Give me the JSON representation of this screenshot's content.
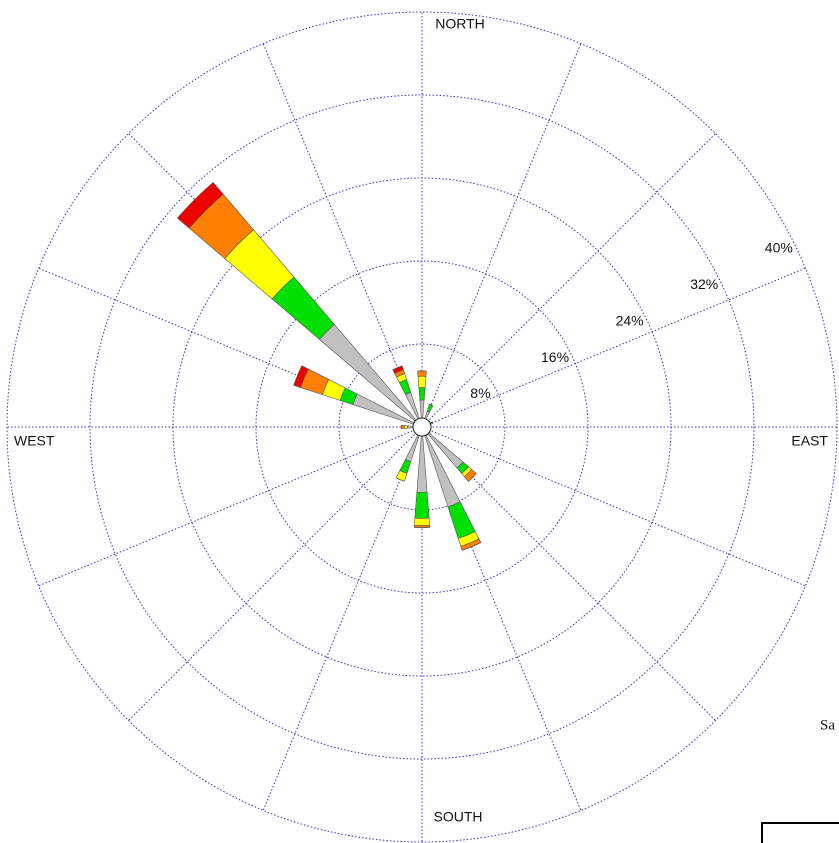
{
  "chart_data": {
    "type": "windrose",
    "categories": [
      "NORTH",
      null,
      null,
      null,
      "EAST",
      null,
      null,
      null,
      "SOUTH",
      null,
      null,
      null,
      "WEST",
      null,
      null,
      null
    ],
    "series": [
      {
        "color": "#c0c0c0",
        "values": [
          2.6,
          1.6,
          0,
          0.6,
          0,
          0,
          5.2,
          8.1,
          6.3,
          3.5,
          0,
          0,
          1.4,
          7,
          13,
          3.5
        ]
      },
      {
        "color": "#00e000",
        "values": [
          1.2,
          0.7,
          0,
          0.5,
          0,
          0,
          0.7,
          3.2,
          2.5,
          1.2,
          0,
          0,
          0,
          1.3,
          6,
          1.3
        ]
      },
      {
        "color": "#ffff00",
        "values": [
          1.1,
          0,
          0,
          0,
          0,
          0,
          0.4,
          0.8,
          0.7,
          0.8,
          0,
          0,
          0.3,
          1.8,
          6,
          0.6
        ]
      },
      {
        "color": "#ff8000",
        "values": [
          0.5,
          0,
          0,
          0,
          0,
          0,
          0.6,
          0.4,
          0.2,
          0,
          0,
          0,
          0.3,
          2.2,
          4.5,
          0.4
        ]
      },
      {
        "color": "#ee0000",
        "values": [
          0,
          0,
          0,
          0,
          0,
          0,
          0,
          0,
          0,
          0,
          0,
          0,
          0,
          0.7,
          1.5,
          0.4
        ]
      }
    ],
    "rlim": [
      0,
      40
    ],
    "rticks": [
      {
        "value": 8,
        "label": "8%"
      },
      {
        "value": 16,
        "label": "16%"
      },
      {
        "value": 24,
        "label": "24%"
      },
      {
        "value": 32,
        "label": "32%"
      },
      {
        "value": 40,
        "label": "40%"
      }
    ],
    "grid": true
  },
  "fragments": {
    "side_text": "Sa"
  }
}
